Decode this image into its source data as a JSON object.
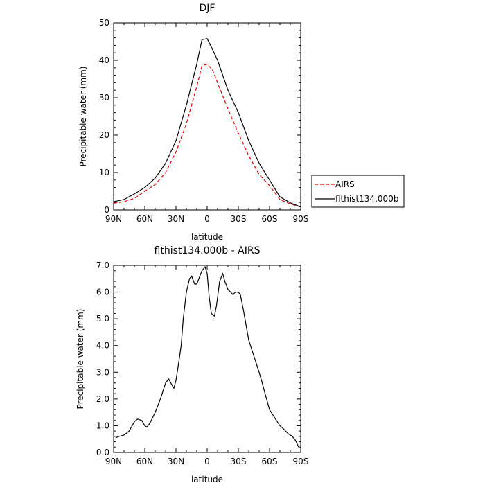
{
  "figure": {
    "panels": [
      {
        "title": "DJF",
        "xlabel": "latitude",
        "ylabel": "Precipitable water (mm)"
      },
      {
        "title": "flthist134.000b - AIRS",
        "xlabel": "latitude",
        "ylabel": "Precipitable water (mm)"
      }
    ],
    "legend": {
      "items": [
        {
          "label": "AIRS",
          "color": "#e60000",
          "dash": "5,3"
        },
        {
          "label": "flthist134.000b",
          "color": "#000000",
          "dash": ""
        }
      ]
    }
  },
  "chart_data": [
    {
      "type": "line",
      "title": "DJF",
      "xlabel": "latitude",
      "ylabel": "Precipitable water (mm)",
      "xlim": [
        90,
        -90
      ],
      "ylim": [
        0,
        50
      ],
      "x_ticks": [
        90,
        60,
        30,
        0,
        -30,
        -60,
        -90
      ],
      "x_tick_labels": [
        "90N",
        "60N",
        "30N",
        "0",
        "30S",
        "60S",
        "90S"
      ],
      "y_ticks": [
        0,
        10,
        20,
        30,
        40,
        50
      ],
      "y_tick_labels": [
        "0",
        "10",
        "20",
        "30",
        "40",
        "50"
      ],
      "grid": false,
      "legend_position": "right, outside plot",
      "series": [
        {
          "name": "AIRS",
          "color": "#e60000",
          "style": "dashed",
          "x": [
            90,
            80,
            70,
            60,
            50,
            40,
            30,
            20,
            10,
            5,
            0,
            -5,
            -10,
            -20,
            -30,
            -40,
            -50,
            -60,
            -70,
            -80,
            -90
          ],
          "y": [
            1.8,
            2.2,
            3.1,
            5.0,
            6.8,
            10.0,
            15.5,
            23.0,
            33.0,
            38.5,
            39.0,
            37.5,
            34.0,
            27.0,
            20.5,
            14.5,
            9.5,
            6.5,
            2.8,
            1.6,
            0.8
          ]
        },
        {
          "name": "flthist134.000b",
          "color": "#000000",
          "style": "solid",
          "x": [
            90,
            80,
            70,
            60,
            50,
            40,
            30,
            20,
            10,
            5,
            0,
            -5,
            -10,
            -20,
            -30,
            -40,
            -50,
            -60,
            -70,
            -80,
            -90
          ],
          "y": [
            2.2,
            2.8,
            4.3,
            6.0,
            8.5,
            12.5,
            18.5,
            28.0,
            39.0,
            45.5,
            45.8,
            43.0,
            40.0,
            32.0,
            26.0,
            18.5,
            12.5,
            8.0,
            3.5,
            1.9,
            0.8
          ]
        }
      ]
    },
    {
      "type": "line",
      "title": "flthist134.000b - AIRS",
      "xlabel": "latitude",
      "ylabel": "Precipitable water (mm)",
      "xlim": [
        90,
        -90
      ],
      "ylim": [
        0,
        7
      ],
      "x_ticks": [
        90,
        60,
        30,
        0,
        -30,
        -60,
        -90
      ],
      "x_tick_labels": [
        "90N",
        "60N",
        "30N",
        "0",
        "30S",
        "60S",
        "90S"
      ],
      "y_ticks": [
        0,
        1,
        2,
        3,
        4,
        5,
        6,
        7
      ],
      "y_tick_labels": [
        "0.0",
        "1.0",
        "2.0",
        "3.0",
        "4.0",
        "5.0",
        "6.0",
        "7.0"
      ],
      "grid": false,
      "series": [
        {
          "color": "#000000",
          "style": "solid",
          "x": [
            88,
            85,
            80,
            75,
            70,
            67,
            63,
            60,
            58,
            55,
            50,
            45,
            40,
            37,
            35,
            32,
            30,
            28,
            25,
            23,
            20,
            17,
            15,
            12,
            10,
            7,
            5,
            2,
            0,
            -2,
            -4,
            -7,
            -9,
            -12,
            -15,
            -17,
            -20,
            -25,
            -27,
            -30,
            -32,
            -35,
            -40,
            -45,
            -50,
            -53,
            -55,
            -60,
            -65,
            -70,
            -73,
            -78,
            -82,
            -85,
            -88
          ],
          "y": [
            0.55,
            0.6,
            0.65,
            0.8,
            1.15,
            1.25,
            1.2,
            1.0,
            0.95,
            1.1,
            1.5,
            2.0,
            2.6,
            2.75,
            2.6,
            2.4,
            2.7,
            3.2,
            4.0,
            5.0,
            6.0,
            6.5,
            6.6,
            6.3,
            6.3,
            6.6,
            6.8,
            6.95,
            6.7,
            5.8,
            5.2,
            5.1,
            5.5,
            6.4,
            6.7,
            6.4,
            6.1,
            5.9,
            6.0,
            6.0,
            5.9,
            5.3,
            4.2,
            3.6,
            3.0,
            2.6,
            2.3,
            1.6,
            1.3,
            1.0,
            0.9,
            0.7,
            0.6,
            0.45,
            0.2
          ]
        }
      ]
    }
  ]
}
